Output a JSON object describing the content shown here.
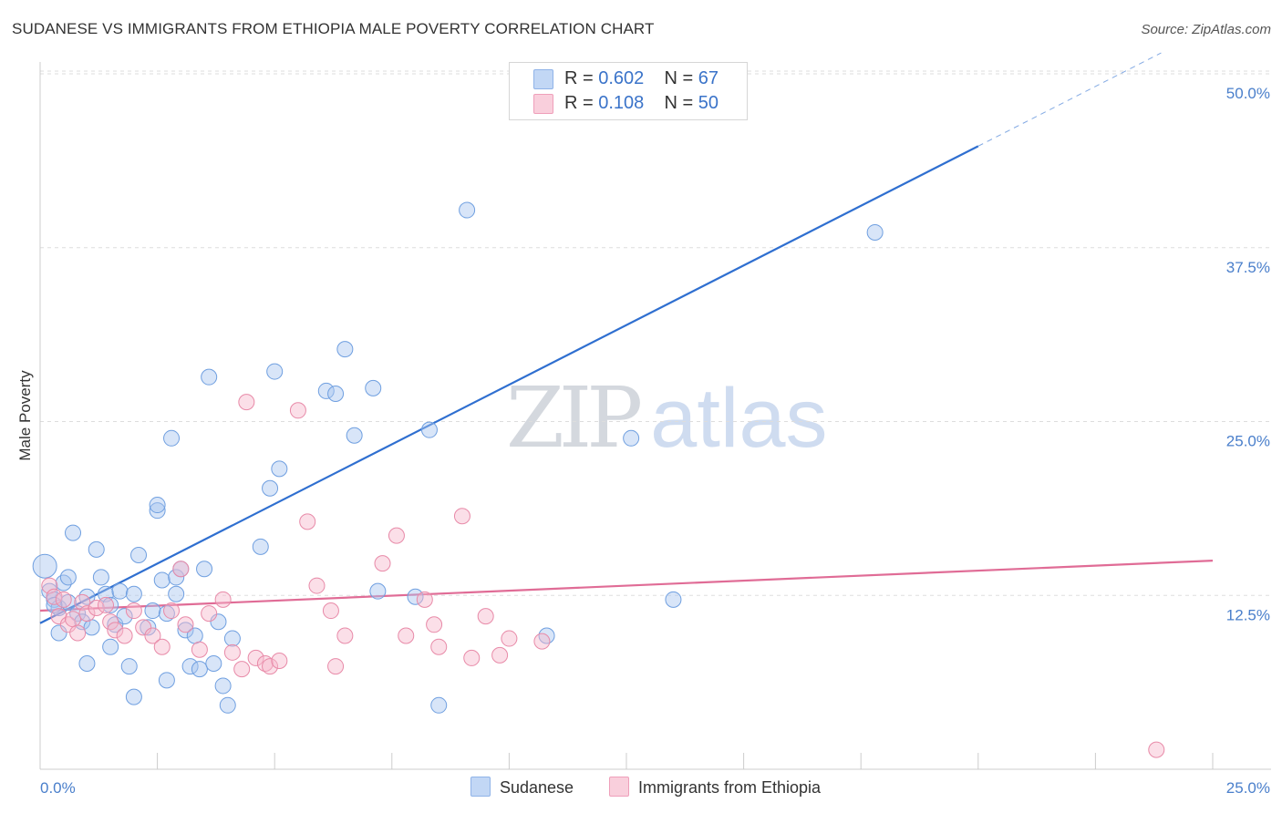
{
  "title": "SUDANESE VS IMMIGRANTS FROM ETHIOPIA MALE POVERTY CORRELATION CHART",
  "source": "Source: ZipAtlas.com",
  "watermark": {
    "zip": "ZIP",
    "atlas": "atlas"
  },
  "legend_top": [
    {
      "r_label": "R =",
      "r_value": "0.602",
      "n_label": "N =",
      "n_value": "67",
      "color": "#a8c6f0"
    },
    {
      "r_label": "R =",
      "r_value": "0.108",
      "n_label": "N =",
      "n_value": "50",
      "color": "#f6b9cb"
    }
  ],
  "legend_bottom": [
    {
      "label": "Sudanese",
      "color": "#a8c6f0"
    },
    {
      "label": "Immigrants from Ethiopia",
      "color": "#f6b9cb"
    }
  ],
  "chart_data": {
    "type": "scatter",
    "title": "SUDANESE VS IMMIGRANTS FROM ETHIOPIA MALE POVERTY CORRELATION CHART",
    "xlabel": "",
    "ylabel": "Male Poverty",
    "xlim": [
      0,
      25
    ],
    "ylim": [
      0,
      50
    ],
    "x_tick_labels": [
      "0.0%",
      "25.0%"
    ],
    "y_ticks": [
      12.5,
      25.0,
      37.5,
      50.0
    ],
    "y_tick_labels": [
      "12.5%",
      "25.0%",
      "37.5%",
      "50.0%"
    ],
    "grid": true,
    "series": [
      {
        "name": "Sudanese",
        "color": "#a8c6f0",
        "stroke": "#6f9fe0",
        "trend": {
          "x": [
            0,
            20.0
          ],
          "y": [
            10.5,
            44.8
          ],
          "dash_to": [
            23.9,
            51.5
          ],
          "color": "#2f6fd0"
        },
        "points": [
          [
            0.1,
            14.6
          ],
          [
            0.2,
            12.8
          ],
          [
            0.3,
            12.2
          ],
          [
            0.4,
            11.6
          ],
          [
            0.5,
            13.4
          ],
          [
            0.6,
            12.0
          ],
          [
            0.3,
            11.8
          ],
          [
            0.6,
            13.8
          ],
          [
            0.7,
            17.0
          ],
          [
            0.8,
            11.2
          ],
          [
            0.9,
            10.6
          ],
          [
            1.0,
            12.4
          ],
          [
            1.1,
            10.2
          ],
          [
            1.0,
            7.6
          ],
          [
            1.2,
            15.8
          ],
          [
            1.3,
            13.8
          ],
          [
            1.4,
            12.6
          ],
          [
            1.5,
            8.8
          ],
          [
            1.5,
            11.8
          ],
          [
            1.6,
            10.4
          ],
          [
            1.7,
            12.8
          ],
          [
            1.8,
            11.0
          ],
          [
            1.9,
            7.4
          ],
          [
            2.0,
            5.2
          ],
          [
            2.0,
            12.6
          ],
          [
            2.1,
            15.4
          ],
          [
            2.3,
            10.2
          ],
          [
            2.4,
            11.4
          ],
          [
            2.5,
            18.6
          ],
          [
            2.5,
            19.0
          ],
          [
            2.6,
            13.6
          ],
          [
            2.7,
            11.2
          ],
          [
            2.7,
            6.4
          ],
          [
            2.8,
            23.8
          ],
          [
            2.9,
            12.6
          ],
          [
            2.9,
            13.8
          ],
          [
            3.0,
            14.4
          ],
          [
            3.1,
            10.0
          ],
          [
            3.2,
            7.4
          ],
          [
            3.3,
            9.6
          ],
          [
            3.4,
            7.2
          ],
          [
            3.6,
            28.2
          ],
          [
            3.5,
            14.4
          ],
          [
            3.7,
            7.6
          ],
          [
            3.8,
            10.6
          ],
          [
            3.9,
            6.0
          ],
          [
            4.0,
            4.6
          ],
          [
            4.1,
            9.4
          ],
          [
            4.7,
            16.0
          ],
          [
            4.9,
            20.2
          ],
          [
            5.1,
            21.6
          ],
          [
            5.0,
            28.6
          ],
          [
            6.1,
            27.2
          ],
          [
            6.3,
            27.0
          ],
          [
            6.5,
            30.2
          ],
          [
            6.7,
            24.0
          ],
          [
            7.1,
            27.4
          ],
          [
            7.2,
            12.8
          ],
          [
            8.0,
            12.4
          ],
          [
            8.3,
            24.4
          ],
          [
            8.5,
            4.6
          ],
          [
            9.1,
            40.2
          ],
          [
            10.8,
            9.6
          ],
          [
            12.6,
            23.8
          ],
          [
            13.5,
            12.2
          ],
          [
            17.8,
            38.6
          ],
          [
            0.4,
            9.8
          ]
        ]
      },
      {
        "name": "Immigrants from Ethiopia",
        "color": "#f6b9cb",
        "stroke": "#e88aa8",
        "trend": {
          "x": [
            0,
            25.0
          ],
          "y": [
            11.4,
            15.0
          ],
          "color": "#e06c96"
        },
        "points": [
          [
            0.2,
            13.2
          ],
          [
            0.3,
            12.4
          ],
          [
            0.4,
            11.0
          ],
          [
            0.5,
            12.2
          ],
          [
            0.6,
            10.4
          ],
          [
            0.7,
            10.8
          ],
          [
            0.8,
            9.8
          ],
          [
            0.9,
            12.0
          ],
          [
            1.0,
            11.2
          ],
          [
            1.2,
            11.6
          ],
          [
            1.4,
            11.8
          ],
          [
            1.5,
            10.6
          ],
          [
            1.6,
            10.0
          ],
          [
            1.8,
            9.6
          ],
          [
            2.0,
            11.4
          ],
          [
            2.2,
            10.2
          ],
          [
            2.4,
            9.6
          ],
          [
            2.6,
            8.8
          ],
          [
            2.8,
            11.4
          ],
          [
            3.0,
            14.4
          ],
          [
            3.1,
            10.4
          ],
          [
            3.4,
            8.6
          ],
          [
            3.6,
            11.2
          ],
          [
            3.9,
            12.2
          ],
          [
            4.1,
            8.4
          ],
          [
            4.3,
            7.2
          ],
          [
            4.4,
            26.4
          ],
          [
            4.6,
            8.0
          ],
          [
            4.8,
            7.6
          ],
          [
            4.9,
            7.4
          ],
          [
            5.1,
            7.8
          ],
          [
            5.5,
            25.8
          ],
          [
            5.7,
            17.8
          ],
          [
            5.9,
            13.2
          ],
          [
            6.2,
            11.4
          ],
          [
            6.3,
            7.4
          ],
          [
            6.5,
            9.6
          ],
          [
            7.3,
            14.8
          ],
          [
            7.6,
            16.8
          ],
          [
            7.8,
            9.6
          ],
          [
            8.2,
            12.2
          ],
          [
            8.4,
            10.4
          ],
          [
            8.5,
            8.8
          ],
          [
            9.0,
            18.2
          ],
          [
            9.2,
            8.0
          ],
          [
            9.5,
            11.0
          ],
          [
            9.8,
            8.2
          ],
          [
            10.0,
            9.4
          ],
          [
            10.7,
            9.2
          ],
          [
            23.8,
            1.4
          ]
        ]
      }
    ]
  }
}
